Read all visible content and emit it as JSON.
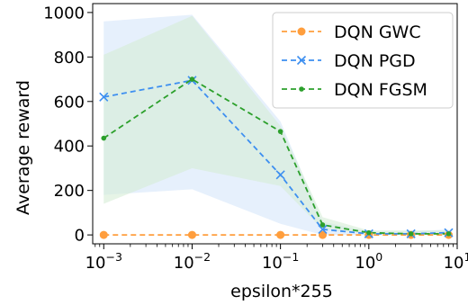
{
  "chart_data": {
    "type": "line",
    "title": "",
    "xlabel": "epsilon*255",
    "ylabel": "Average reward",
    "x_scale": "log",
    "xlim": [
      0.00075,
      10
    ],
    "ylim": [
      -40,
      1040
    ],
    "x_ticks": [
      {
        "value": 0.001,
        "base": "10",
        "exp": "−3"
      },
      {
        "value": 0.01,
        "base": "10",
        "exp": "−2"
      },
      {
        "value": 0.1,
        "base": "10",
        "exp": "−1"
      },
      {
        "value": 1,
        "base": "10",
        "exp": "0"
      },
      {
        "value": 10,
        "base": "10",
        "exp": "1"
      }
    ],
    "y_ticks": [
      0,
      200,
      400,
      600,
      800,
      1000
    ],
    "grid": false,
    "legend_position": "top-right",
    "x": [
      0.001,
      0.01,
      0.1,
      0.3,
      1,
      3,
      8
    ],
    "series": [
      {
        "name": "DQN GWC",
        "color": "#ff9e3d",
        "marker": "circle",
        "values": [
          0,
          0,
          0,
          0,
          0,
          0,
          0
        ],
        "band": null
      },
      {
        "name": "DQN PGD",
        "color": "#3d8ff0",
        "marker": "x",
        "values": [
          620,
          695,
          270,
          25,
          5,
          5,
          10
        ],
        "band": {
          "lower": [
            180,
            205,
            50,
            0,
            0,
            0,
            0
          ],
          "upper": [
            960,
            990,
            510,
            60,
            15,
            15,
            25
          ],
          "color": "#d6e6fa"
        }
      },
      {
        "name": "DQN FGSM",
        "color": "#2ca02c",
        "marker": "dot",
        "values": [
          435,
          700,
          465,
          45,
          10,
          5,
          5
        ],
        "band": {
          "lower": [
            140,
            300,
            220,
            25,
            5,
            0,
            0
          ],
          "upper": [
            810,
            985,
            490,
            80,
            20,
            20,
            20
          ],
          "color": "#d5ecd5"
        }
      }
    ]
  }
}
